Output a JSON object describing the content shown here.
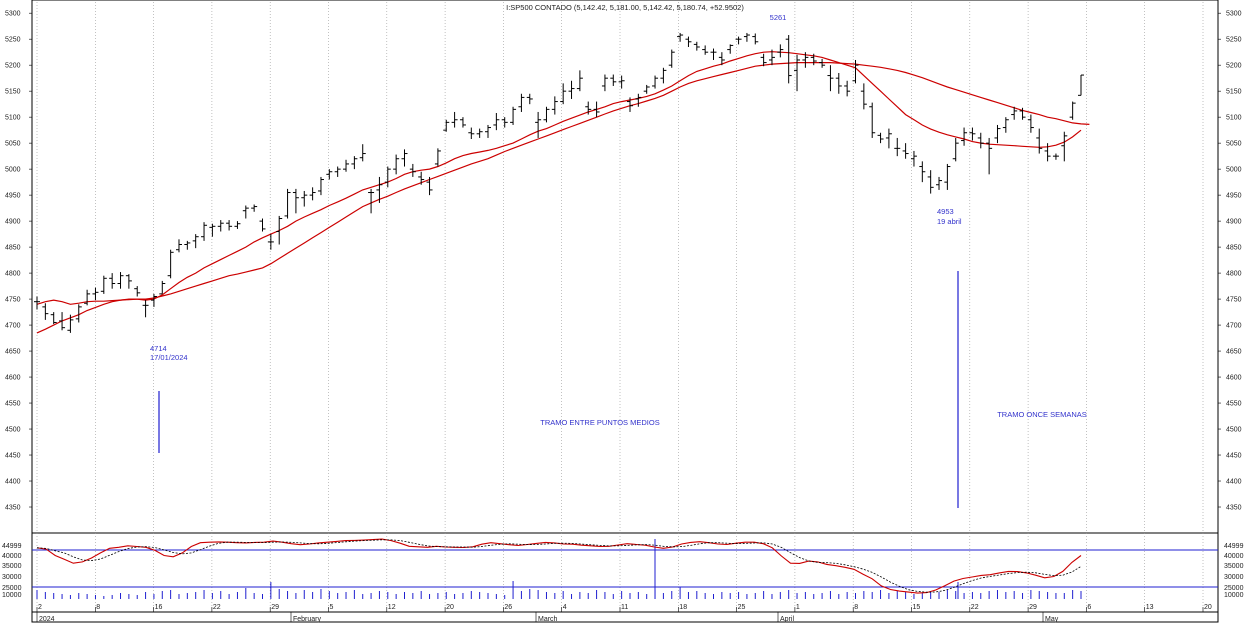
{
  "chart_data": {
    "type": "ohlc",
    "title": "I:SP500 CONTADO (5,142.42, 5,181.00, 5,142.42, 5,180.74, +52.9502)",
    "y_axis": {
      "range": [
        4300,
        5310
      ],
      "ticks": [
        4350,
        4400,
        4450,
        4500,
        4550,
        4600,
        4650,
        4700,
        4750,
        4800,
        4850,
        4900,
        4950,
        5000,
        5050,
        5100,
        5150,
        5200,
        5250,
        5300
      ]
    },
    "x_axis": {
      "day_ticks": [
        "2",
        "8",
        "16",
        "22",
        "29",
        "5",
        "12",
        "20",
        "26",
        "4",
        "11",
        "18",
        "25",
        "1",
        "8",
        "15",
        "22",
        "29",
        "6",
        "13",
        "20"
      ],
      "month_labels": [
        "2024",
        "February",
        "March",
        "April",
        "May"
      ]
    },
    "bars": [
      {
        "o": 4745,
        "h": 4755,
        "l": 4730,
        "c": 4745
      },
      {
        "o": 4735,
        "h": 4742,
        "l": 4710,
        "c": 4722
      },
      {
        "o": 4720,
        "h": 4725,
        "l": 4702,
        "c": 4705
      },
      {
        "o": 4708,
        "h": 4725,
        "l": 4690,
        "c": 4695
      },
      {
        "o": 4690,
        "h": 4720,
        "l": 4685,
        "c": 4710
      },
      {
        "o": 4712,
        "h": 4740,
        "l": 4705,
        "c": 4735
      },
      {
        "o": 4742,
        "h": 4768,
        "l": 4738,
        "c": 4760
      },
      {
        "o": 4760,
        "h": 4772,
        "l": 4748,
        "c": 4763
      },
      {
        "o": 4765,
        "h": 4795,
        "l": 4760,
        "c": 4790
      },
      {
        "o": 4790,
        "h": 4800,
        "l": 4770,
        "c": 4780
      },
      {
        "o": 4780,
        "h": 4802,
        "l": 4770,
        "c": 4795
      },
      {
        "o": 4795,
        "h": 4798,
        "l": 4770,
        "c": 4785
      },
      {
        "o": 4770,
        "h": 4775,
        "l": 4755,
        "c": 4762
      },
      {
        "o": 4738,
        "h": 4748,
        "l": 4715,
        "c": 4738
      },
      {
        "o": 4748,
        "h": 4760,
        "l": 4735,
        "c": 4755
      },
      {
        "o": 4760,
        "h": 4785,
        "l": 4760,
        "c": 4780
      },
      {
        "o": 4795,
        "h": 4845,
        "l": 4790,
        "c": 4840
      },
      {
        "o": 4845,
        "h": 4865,
        "l": 4840,
        "c": 4855
      },
      {
        "o": 4855,
        "h": 4862,
        "l": 4845,
        "c": 4858
      },
      {
        "o": 4862,
        "h": 4875,
        "l": 4848,
        "c": 4870
      },
      {
        "o": 4870,
        "h": 4898,
        "l": 4862,
        "c": 4892
      },
      {
        "o": 4888,
        "h": 4895,
        "l": 4870,
        "c": 4890
      },
      {
        "o": 4890,
        "h": 4902,
        "l": 4880,
        "c": 4896
      },
      {
        "o": 4896,
        "h": 4902,
        "l": 4882,
        "c": 4890
      },
      {
        "o": 4890,
        "h": 4900,
        "l": 4885,
        "c": 4895
      },
      {
        "o": 4920,
        "h": 4930,
        "l": 4905,
        "c": 4925
      },
      {
        "o": 4925,
        "h": 4932,
        "l": 4918,
        "c": 4928
      },
      {
        "o": 4900,
        "h": 4905,
        "l": 4880,
        "c": 4885
      },
      {
        "o": 4860,
        "h": 4875,
        "l": 4845,
        "c": 4860
      },
      {
        "o": 4880,
        "h": 4910,
        "l": 4855,
        "c": 4905
      },
      {
        "o": 4910,
        "h": 4962,
        "l": 4905,
        "c": 4955
      },
      {
        "o": 4955,
        "h": 4962,
        "l": 4915,
        "c": 4945
      },
      {
        "o": 4945,
        "h": 4958,
        "l": 4928,
        "c": 4950
      },
      {
        "o": 4950,
        "h": 4965,
        "l": 4940,
        "c": 4955
      },
      {
        "o": 4958,
        "h": 4985,
        "l": 4950,
        "c": 4980
      },
      {
        "o": 4990,
        "h": 5000,
        "l": 4980,
        "c": 4995
      },
      {
        "o": 4995,
        "h": 5005,
        "l": 4985,
        "c": 5000
      },
      {
        "o": 5000,
        "h": 5018,
        "l": 4995,
        "c": 5010
      },
      {
        "o": 5010,
        "h": 5025,
        "l": 5000,
        "c": 5020
      },
      {
        "o": 5022,
        "h": 5048,
        "l": 5015,
        "c": 5030
      },
      {
        "o": 4955,
        "h": 4962,
        "l": 4915,
        "c": 4955
      },
      {
        "o": 4960,
        "h": 4985,
        "l": 4935,
        "c": 4970
      },
      {
        "o": 4975,
        "h": 5005,
        "l": 4965,
        "c": 5000
      },
      {
        "o": 5000,
        "h": 5028,
        "l": 4990,
        "c": 5020
      },
      {
        "o": 5020,
        "h": 5038,
        "l": 5005,
        "c": 5030
      },
      {
        "o": 5000,
        "h": 5010,
        "l": 4985,
        "c": 4995
      },
      {
        "o": 4985,
        "h": 4995,
        "l": 4970,
        "c": 4980
      },
      {
        "o": 4975,
        "h": 4985,
        "l": 4950,
        "c": 4960
      },
      {
        "o": 5010,
        "h": 5040,
        "l": 5005,
        "c": 5035
      },
      {
        "o": 5075,
        "h": 5095,
        "l": 5072,
        "c": 5090
      },
      {
        "o": 5090,
        "h": 5110,
        "l": 5080,
        "c": 5095
      },
      {
        "o": 5095,
        "h": 5100,
        "l": 5080,
        "c": 5085
      },
      {
        "o": 5070,
        "h": 5080,
        "l": 5058,
        "c": 5068
      },
      {
        "o": 5068,
        "h": 5078,
        "l": 5060,
        "c": 5072
      },
      {
        "o": 5072,
        "h": 5085,
        "l": 5060,
        "c": 5080
      },
      {
        "o": 5085,
        "h": 5108,
        "l": 5075,
        "c": 5095
      },
      {
        "o": 5095,
        "h": 5100,
        "l": 5080,
        "c": 5090
      },
      {
        "o": 5090,
        "h": 5120,
        "l": 5085,
        "c": 5115
      },
      {
        "o": 5120,
        "h": 5145,
        "l": 5110,
        "c": 5138
      },
      {
        "o": 5138,
        "h": 5145,
        "l": 5125,
        "c": 5135
      },
      {
        "o": 5090,
        "h": 5110,
        "l": 5060,
        "c": 5095
      },
      {
        "o": 5095,
        "h": 5120,
        "l": 5090,
        "c": 5115
      },
      {
        "o": 5115,
        "h": 5140,
        "l": 5105,
        "c": 5130
      },
      {
        "o": 5130,
        "h": 5165,
        "l": 5125,
        "c": 5150
      },
      {
        "o": 5150,
        "h": 5170,
        "l": 5135,
        "c": 5155
      },
      {
        "o": 5155,
        "h": 5190,
        "l": 5150,
        "c": 5175
      },
      {
        "o": 5120,
        "h": 5130,
        "l": 5105,
        "c": 5115
      },
      {
        "o": 5115,
        "h": 5130,
        "l": 5100,
        "c": 5110
      },
      {
        "o": 5160,
        "h": 5182,
        "l": 5150,
        "c": 5175
      },
      {
        "o": 5175,
        "h": 5182,
        "l": 5160,
        "c": 5168
      },
      {
        "o": 5168,
        "h": 5180,
        "l": 5155,
        "c": 5170
      },
      {
        "o": 5130,
        "h": 5138,
        "l": 5110,
        "c": 5122
      },
      {
        "o": 5135,
        "h": 5145,
        "l": 5120,
        "c": 5138
      },
      {
        "o": 5150,
        "h": 5162,
        "l": 5145,
        "c": 5158
      },
      {
        "o": 5160,
        "h": 5180,
        "l": 5155,
        "c": 5175
      },
      {
        "o": 5175,
        "h": 5195,
        "l": 5165,
        "c": 5190
      },
      {
        "o": 5200,
        "h": 5230,
        "l": 5195,
        "c": 5225
      },
      {
        "o": 5255,
        "h": 5262,
        "l": 5245,
        "c": 5258
      },
      {
        "o": 5250,
        "h": 5255,
        "l": 5235,
        "c": 5245
      },
      {
        "o": 5240,
        "h": 5245,
        "l": 5228,
        "c": 5235
      },
      {
        "o": 5230,
        "h": 5238,
        "l": 5220,
        "c": 5225
      },
      {
        "o": 5225,
        "h": 5232,
        "l": 5210,
        "c": 5225
      },
      {
        "o": 5215,
        "h": 5225,
        "l": 5200,
        "c": 5210
      },
      {
        "o": 5230,
        "h": 5240,
        "l": 5222,
        "c": 5238
      },
      {
        "o": 5250,
        "h": 5255,
        "l": 5240,
        "c": 5250
      },
      {
        "o": 5255,
        "h": 5262,
        "l": 5245,
        "c": 5258
      },
      {
        "o": 5255,
        "h": 5261,
        "l": 5240,
        "c": 5245
      },
      {
        "o": 5215,
        "h": 5222,
        "l": 5198,
        "c": 5205
      },
      {
        "o": 5210,
        "h": 5230,
        "l": 5200,
        "c": 5215
      },
      {
        "o": 5225,
        "h": 5240,
        "l": 5215,
        "c": 5230
      },
      {
        "o": 5250,
        "h": 5258,
        "l": 5165,
        "c": 5180
      },
      {
        "o": 5190,
        "h": 5220,
        "l": 5150,
        "c": 5210
      },
      {
        "o": 5210,
        "h": 5225,
        "l": 5195,
        "c": 5215
      },
      {
        "o": 5215,
        "h": 5222,
        "l": 5200,
        "c": 5208
      },
      {
        "o": 5205,
        "h": 5212,
        "l": 5195,
        "c": 5200
      },
      {
        "o": 5180,
        "h": 5200,
        "l": 5150,
        "c": 5175
      },
      {
        "o": 5175,
        "h": 5185,
        "l": 5145,
        "c": 5160
      },
      {
        "o": 5160,
        "h": 5170,
        "l": 5140,
        "c": 5150
      },
      {
        "o": 5170,
        "h": 5210,
        "l": 5165,
        "c": 5200
      },
      {
        "o": 5150,
        "h": 5165,
        "l": 5115,
        "c": 5125
      },
      {
        "o": 5120,
        "h": 5128,
        "l": 5060,
        "c": 5070
      },
      {
        "o": 5065,
        "h": 5070,
        "l": 5050,
        "c": 5058
      },
      {
        "o": 5060,
        "h": 5078,
        "l": 5040,
        "c": 5068
      },
      {
        "o": 5040,
        "h": 5060,
        "l": 5025,
        "c": 5040
      },
      {
        "o": 5035,
        "h": 5050,
        "l": 5020,
        "c": 5030
      },
      {
        "o": 5020,
        "h": 5035,
        "l": 5005,
        "c": 5025
      },
      {
        "o": 5005,
        "h": 5015,
        "l": 4975,
        "c": 4995
      },
      {
        "o": 4985,
        "h": 4998,
        "l": 4953,
        "c": 4965
      },
      {
        "o": 4970,
        "h": 4985,
        "l": 4960,
        "c": 4978
      },
      {
        "o": 4975,
        "h": 5010,
        "l": 4960,
        "c": 5005
      },
      {
        "o": 5020,
        "h": 5060,
        "l": 5015,
        "c": 5050
      },
      {
        "o": 5055,
        "h": 5080,
        "l": 5045,
        "c": 5070
      },
      {
        "o": 5070,
        "h": 5080,
        "l": 5055,
        "c": 5068
      },
      {
        "o": 5060,
        "h": 5070,
        "l": 5040,
        "c": 5050
      },
      {
        "o": 5050,
        "h": 5060,
        "l": 4990,
        "c": 5040
      },
      {
        "o": 5060,
        "h": 5085,
        "l": 5050,
        "c": 5078
      },
      {
        "o": 5080,
        "h": 5100,
        "l": 5070,
        "c": 5095
      },
      {
        "o": 5105,
        "h": 5120,
        "l": 5095,
        "c": 5112
      },
      {
        "o": 5112,
        "h": 5118,
        "l": 5095,
        "c": 5100
      },
      {
        "o": 5095,
        "h": 5105,
        "l": 5070,
        "c": 5080
      },
      {
        "o": 5060,
        "h": 5078,
        "l": 5030,
        "c": 5040
      },
      {
        "o": 5035,
        "h": 5050,
        "l": 5015,
        "c": 5025
      },
      {
        "o": 5025,
        "h": 5030,
        "l": 5018,
        "c": 5025
      },
      {
        "o": 5045,
        "h": 5072,
        "l": 5015,
        "c": 5064
      },
      {
        "o": 5100,
        "h": 5130,
        "l": 5095,
        "c": 5127
      },
      {
        "o": 5142,
        "h": 5181,
        "l": 5142,
        "c": 5181
      }
    ],
    "ma_fast": [
      4685,
      4692,
      4700,
      4708,
      4714,
      4720,
      4728,
      4734,
      4740,
      4745,
      4748,
      4750,
      4750,
      4748,
      4750,
      4758,
      4770,
      4782,
      4792,
      4800,
      4810,
      4818,
      4826,
      4834,
      4842,
      4850,
      4860,
      4868,
      4875,
      4882,
      4890,
      4900,
      4908,
      4915,
      4922,
      4930,
      4937,
      4944,
      4952,
      4960,
      4965,
      4970,
      4975,
      4982,
      4990,
      4995,
      4998,
      5000,
      5005,
      5012,
      5020,
      5026,
      5030,
      5033,
      5036,
      5040,
      5045,
      5050,
      5058,
      5066,
      5073,
      5078,
      5085,
      5092,
      5098,
      5104,
      5110,
      5115,
      5120,
      5126,
      5130,
      5133,
      5136,
      5140,
      5145,
      5152,
      5160,
      5170,
      5180,
      5188,
      5193,
      5198,
      5202,
      5208,
      5213,
      5218,
      5222,
      5225,
      5226,
      5225,
      5224,
      5222,
      5220,
      5218,
      5215,
      5210,
      5205,
      5200,
      5195,
      5180,
      5165,
      5150,
      5135,
      5120,
      5105,
      5095,
      5085,
      5077,
      5071,
      5066,
      5062,
      5058,
      5053,
      5050,
      5048,
      5047,
      5046,
      5045,
      5044,
      5043,
      5042,
      5043,
      5046,
      5052,
      5062,
      5075
    ],
    "ma_slow": [
      4740,
      4745,
      4748,
      4745,
      4740,
      4742,
      4745,
      4746,
      4746,
      4747,
      4748,
      4749,
      4750,
      4750,
      4752,
      4756,
      4760,
      4765,
      4770,
      4775,
      4780,
      4785,
      4790,
      4795,
      4798,
      4802,
      4806,
      4810,
      4818,
      4828,
      4838,
      4848,
      4858,
      4868,
      4878,
      4888,
      4898,
      4908,
      4918,
      4928,
      4935,
      4942,
      4948,
      4955,
      4962,
      4968,
      4974,
      4980,
      4986,
      4992,
      4998,
      5004,
      5010,
      5015,
      5020,
      5027,
      5034,
      5040,
      5046,
      5052,
      5058,
      5064,
      5070,
      5076,
      5082,
      5088,
      5094,
      5100,
      5106,
      5112,
      5117,
      5122,
      5126,
      5131,
      5136,
      5142,
      5150,
      5158,
      5165,
      5170,
      5174,
      5178,
      5182,
      5186,
      5190,
      5194,
      5198,
      5200,
      5202,
      5203,
      5204,
      5205,
      5205,
      5205,
      5205,
      5205,
      5204,
      5203,
      5202,
      5200,
      5198,
      5196,
      5193,
      5190,
      5186,
      5181,
      5176,
      5170,
      5164,
      5158,
      5153,
      5148,
      5143,
      5138,
      5133,
      5128,
      5123,
      5118,
      5113,
      5109,
      5105,
      5100,
      5097,
      5093,
      5089,
      5087,
      5086
    ],
    "annotations": {
      "peak_value": "5261",
      "low1_value": "4714",
      "low1_date": "17/01/2024",
      "low2_value": "4953",
      "low2_date": "19 abril",
      "label_middle": "TRAMO ENTRE PUNTOS MEDIOS",
      "label_right": "TRAMO ONCE SEMANAS"
    },
    "lower_panel": {
      "left_labels": [
        "44999",
        "40000",
        "35000",
        "30000",
        "25000",
        "10000"
      ],
      "right_labels": [
        "44999",
        "40000",
        "35000",
        "30000",
        "25000",
        "10000"
      ],
      "volume": [
        9,
        7,
        6,
        5,
        4,
        6,
        5,
        4,
        3,
        4,
        6,
        5,
        4,
        7,
        5,
        8,
        9,
        5,
        6,
        7,
        9,
        6,
        8,
        5,
        7,
        11,
        6,
        5,
        17,
        10,
        8,
        6,
        9,
        7,
        10,
        8,
        6,
        7,
        9,
        5,
        6,
        8,
        7,
        5,
        7,
        6,
        8,
        5,
        6,
        7,
        5,
        6,
        8,
        7,
        6,
        5,
        4,
        18,
        8,
        10,
        9,
        7,
        6,
        8,
        5,
        7,
        6,
        9,
        7,
        5,
        8,
        6,
        7,
        5,
        9,
        6,
        8,
        12,
        7,
        8,
        6,
        5,
        7,
        6,
        7,
        5,
        6,
        8,
        5,
        7,
        9,
        6,
        7,
        5,
        6,
        8,
        5,
        7,
        6,
        8,
        7,
        9,
        6,
        8,
        7,
        5,
        6,
        8,
        7,
        9,
        8,
        6,
        7,
        6,
        8,
        9,
        7,
        8,
        6,
        9,
        8,
        7,
        6,
        6,
        9,
        8
      ],
      "osc_fast": [
        42000,
        41500,
        39000,
        37500,
        36000,
        36500,
        38000,
        40000,
        41800,
        42200,
        42800,
        42500,
        42200,
        41000,
        39000,
        38500,
        40000,
        42500,
        44000,
        44200,
        44300,
        44200,
        44000,
        43900,
        44100,
        44200,
        44600,
        44200,
        43600,
        43200,
        43500,
        43900,
        44200,
        44500,
        44800,
        44900,
        45000,
        45200,
        45400,
        44800,
        43800,
        42600,
        42400,
        42200,
        42600,
        42300,
        42200,
        42100,
        42400,
        43400,
        44000,
        43600,
        43200,
        42900,
        43300,
        43700,
        44100,
        43900,
        43500,
        43400,
        43000,
        42800,
        42500,
        42600,
        43100,
        43600,
        43300,
        43000,
        42300,
        41800,
        42300,
        43500,
        44100,
        44400,
        44000,
        43500,
        43300,
        43800,
        44200,
        44200,
        43600,
        42000,
        38800,
        36000,
        35900,
        36800,
        36500,
        35500,
        35000,
        34400,
        33600,
        31700,
        29900,
        27100,
        25700,
        25100,
        24700,
        24300,
        24500,
        25500,
        27200,
        29000,
        30000,
        30600,
        31200,
        31500,
        32200,
        32800,
        32700,
        32200,
        31300,
        30300,
        30800,
        32800,
        36300,
        39000
      ]
    }
  }
}
